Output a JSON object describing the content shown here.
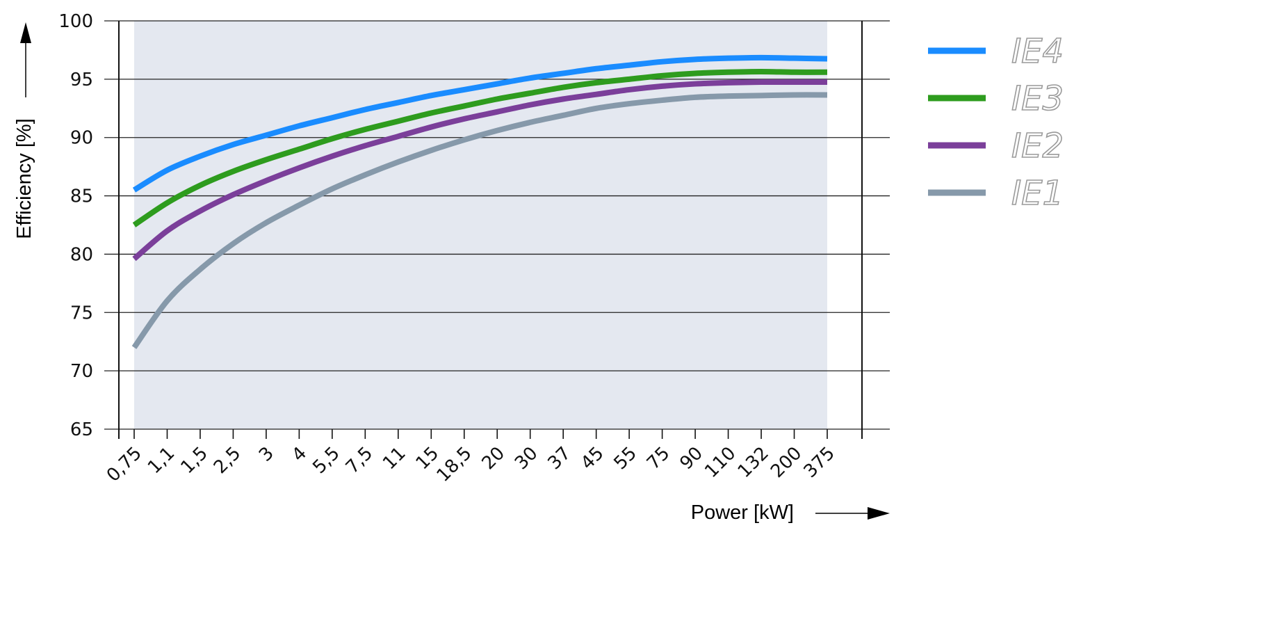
{
  "chart_data": {
    "type": "line",
    "ylabel": "Efficiency [%]",
    "xlabel": "Power [kW]",
    "ylim": [
      65,
      100
    ],
    "yticks": [
      "65",
      "70",
      "75",
      "80",
      "85",
      "90",
      "95",
      "100"
    ],
    "categories": [
      "0,75",
      "1,1",
      "1,5",
      "2,5",
      "3",
      "4",
      "5,5",
      "7,5",
      "11",
      "15",
      "18,5",
      "20",
      "30",
      "37",
      "45",
      "55",
      "75",
      "90",
      "110",
      "132",
      "200",
      "375"
    ],
    "grid": true,
    "legend_position": "top-right",
    "series": [
      {
        "name": "IE4",
        "color": "#1a8cff",
        "values": [
          85.5,
          87.2,
          88.4,
          89.4,
          90.2,
          91.0,
          91.7,
          92.4,
          93.0,
          93.6,
          94.1,
          94.6,
          95.1,
          95.5,
          95.9,
          96.2,
          96.5,
          96.7,
          96.8,
          96.85,
          96.8,
          96.75
        ]
      },
      {
        "name": "IE3",
        "color": "#2e9c1e",
        "values": [
          82.5,
          84.4,
          85.9,
          87.1,
          88.1,
          89.0,
          89.9,
          90.7,
          91.4,
          92.1,
          92.7,
          93.3,
          93.8,
          94.3,
          94.7,
          95.0,
          95.3,
          95.5,
          95.6,
          95.65,
          95.6,
          95.6
        ]
      },
      {
        "name": "IE2",
        "color": "#7b3f9a",
        "values": [
          79.6,
          82.0,
          83.7,
          85.1,
          86.3,
          87.4,
          88.4,
          89.3,
          90.1,
          90.9,
          91.6,
          92.2,
          92.8,
          93.3,
          93.7,
          94.1,
          94.4,
          94.6,
          94.7,
          94.75,
          94.75,
          94.75
        ]
      },
      {
        "name": "IE1",
        "color": "#8699aa",
        "values": [
          72.0,
          76.0,
          78.7,
          80.9,
          82.7,
          84.2,
          85.6,
          86.8,
          87.9,
          88.9,
          89.8,
          90.6,
          91.3,
          91.9,
          92.5,
          92.9,
          93.2,
          93.45,
          93.55,
          93.6,
          93.65,
          93.65
        ]
      }
    ]
  }
}
